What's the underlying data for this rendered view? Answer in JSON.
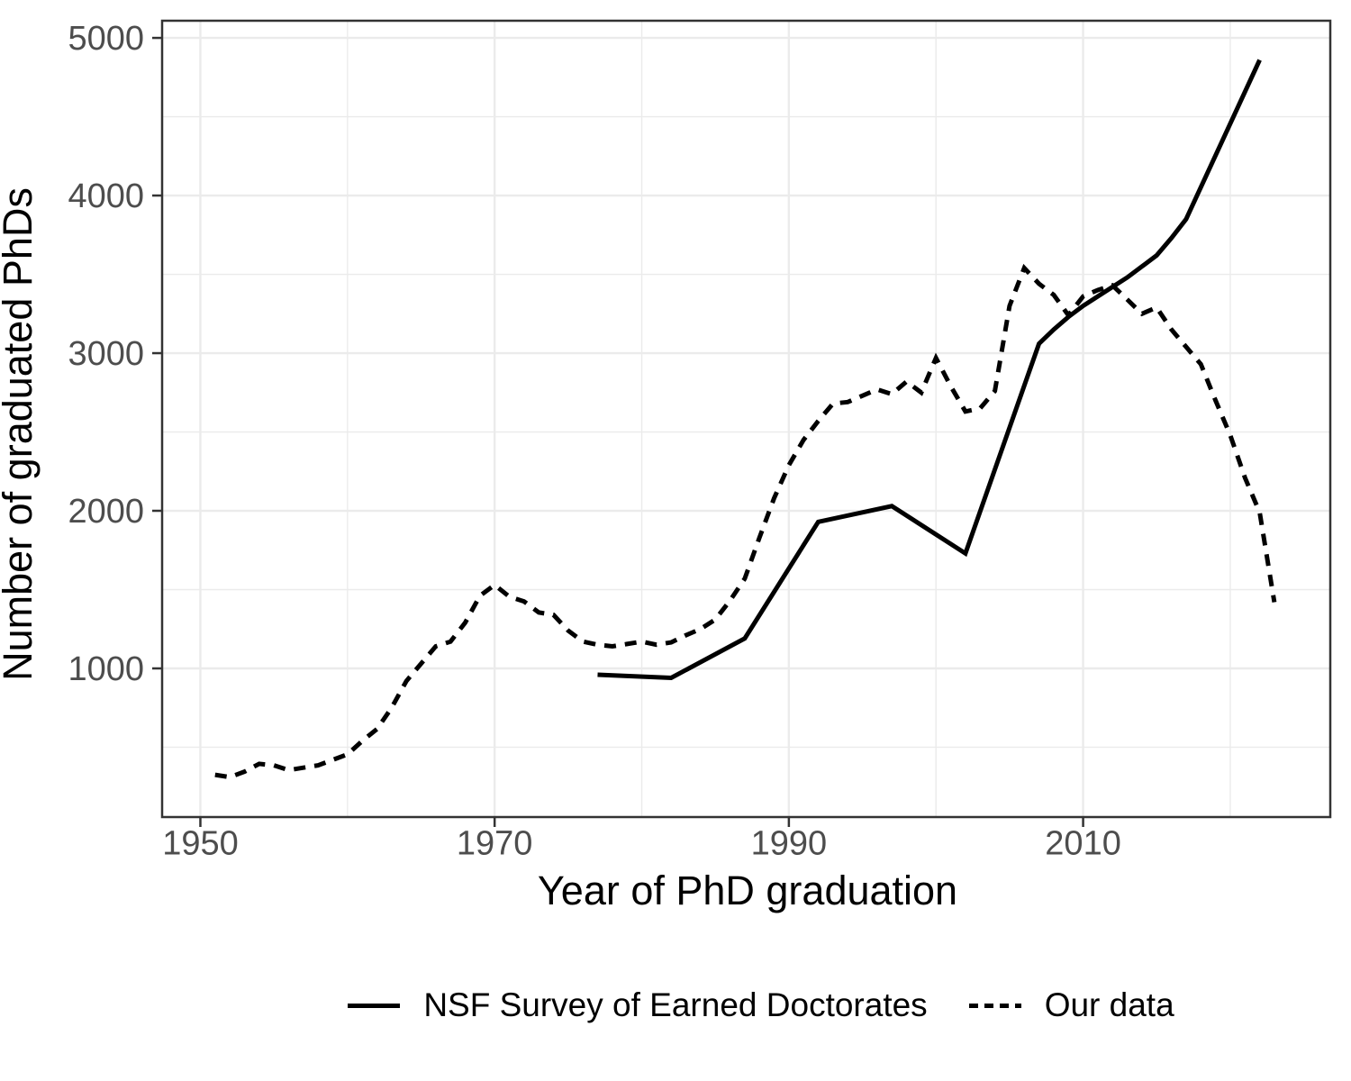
{
  "chart_data": {
    "type": "line",
    "title": "",
    "xlabel": "Year of PhD graduation",
    "ylabel": "Number of graduated PhDs",
    "xlim": [
      1947.4,
      2026.8
    ],
    "ylim": [
      57,
      5109
    ],
    "x_major_ticks": [
      1950,
      1970,
      1990,
      2010
    ],
    "x_minor_ticks": [
      1960,
      1980,
      2000,
      2020
    ],
    "y_major_ticks": [
      1000,
      2000,
      3000,
      4000,
      5000
    ],
    "y_minor_ticks": [
      500,
      1500,
      2500,
      3500,
      4500
    ],
    "grid": true,
    "legend_position": "bottom",
    "colors": {
      "line": "#000000",
      "grid": "#ebebeb",
      "panel_border": "#333333",
      "tick_mark": "#333333",
      "tick_label": "#4d4d4d",
      "background": "#ffffff"
    },
    "series": [
      {
        "name": "NSF Survey of Earned Doctorates",
        "linetype": "solid",
        "color": "#000000",
        "x": [
          1977,
          1982,
          1987,
          1992,
          1997,
          2002,
          2007,
          2008,
          2009,
          2010,
          2011,
          2012,
          2013,
          2014,
          2015,
          2016,
          2017,
          2022
        ],
        "y": [
          960,
          940,
          1190,
          1930,
          2030,
          1730,
          3060,
          3150,
          3230,
          3300,
          3360,
          3420,
          3480,
          3550,
          3620,
          3730,
          3850,
          4860
        ]
      },
      {
        "name": "Our data",
        "linetype": "dashed",
        "color": "#000000",
        "x": [
          1951,
          1952,
          1953,
          1954,
          1955,
          1956,
          1957,
          1958,
          1959,
          1960,
          1961,
          1962,
          1963,
          1964,
          1965,
          1966,
          1967,
          1968,
          1969,
          1970,
          1971,
          1972,
          1973,
          1974,
          1975,
          1976,
          1977,
          1978,
          1979,
          1980,
          1981,
          1982,
          1983,
          1984,
          1985,
          1986,
          1987,
          1988,
          1989,
          1990,
          1991,
          1992,
          1993,
          1994,
          1995,
          1996,
          1997,
          1998,
          1999,
          2000,
          2001,
          2002,
          2003,
          2004,
          2005,
          2006,
          2007,
          2008,
          2009,
          2010,
          2011,
          2012,
          2013,
          2014,
          2015,
          2016,
          2017,
          2018,
          2019,
          2020,
          2021,
          2022,
          2023
        ],
        "y": [
          325,
          310,
          345,
          395,
          385,
          355,
          370,
          385,
          420,
          455,
          540,
          615,
          750,
          920,
          1030,
          1140,
          1170,
          1290,
          1460,
          1530,
          1455,
          1425,
          1355,
          1340,
          1240,
          1170,
          1150,
          1140,
          1155,
          1170,
          1150,
          1165,
          1210,
          1250,
          1310,
          1430,
          1570,
          1830,
          2080,
          2290,
          2450,
          2570,
          2680,
          2690,
          2730,
          2770,
          2740,
          2820,
          2750,
          2970,
          2790,
          2630,
          2650,
          2760,
          3300,
          3540,
          3440,
          3370,
          3240,
          3360,
          3400,
          3430,
          3340,
          3250,
          3290,
          3150,
          3040,
          2930,
          2700,
          2480,
          2210,
          1990,
          1420
        ]
      }
    ]
  }
}
